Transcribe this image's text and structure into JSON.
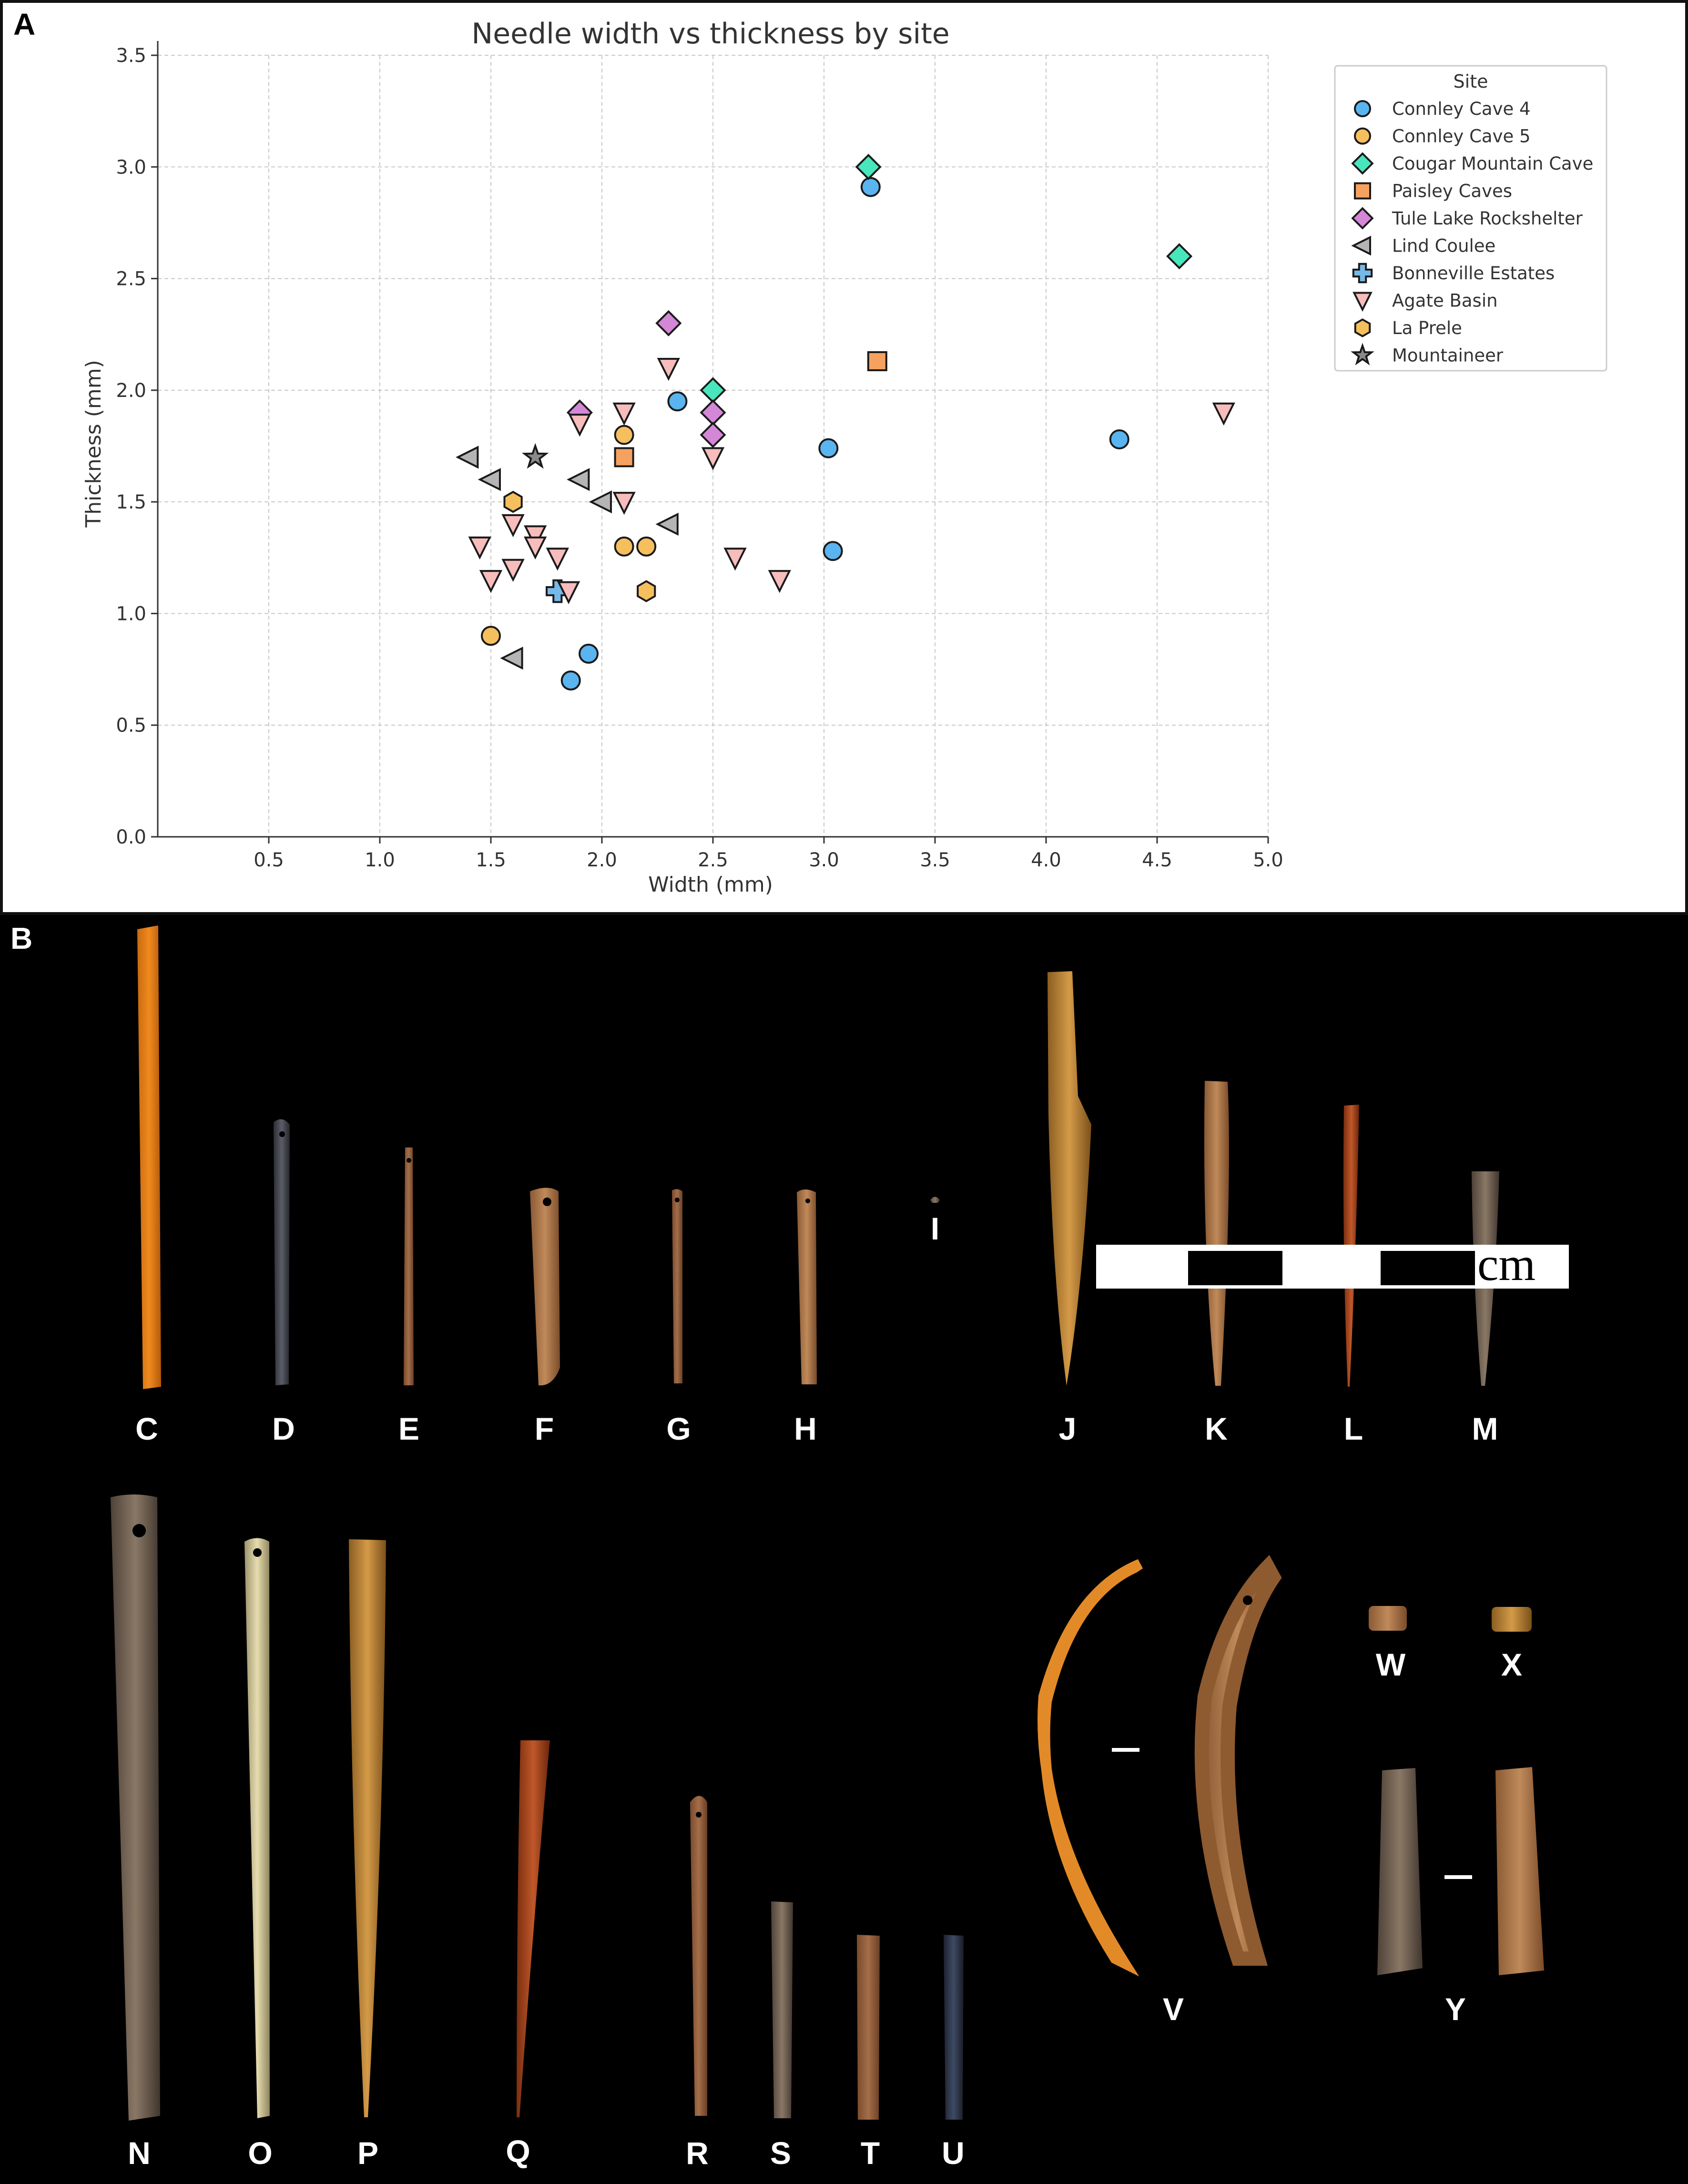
{
  "panels": {
    "a_letter": "A",
    "b_letter": "B"
  },
  "chart_data": {
    "type": "scatter",
    "title": "Needle width vs thickness by site",
    "xlabel": "Width (mm)",
    "ylabel": "Thickness (mm)",
    "xlim": [
      0,
      5.0
    ],
    "ylim": [
      0,
      3.5
    ],
    "x_ticks": [
      "0.5",
      "1.0",
      "1.5",
      "2.0",
      "2.5",
      "3.0",
      "3.5",
      "4.0",
      "4.5",
      "5.0"
    ],
    "y_ticks": [
      "0.0",
      "0.5",
      "1.0",
      "1.5",
      "2.0",
      "2.5",
      "3.0",
      "3.5"
    ],
    "grid": true,
    "legend_title": "Site",
    "legend_position": "upper-right",
    "series": [
      {
        "name": "Connley Cave 4",
        "marker": "circle",
        "color": "#5ab4f0",
        "points": [
          [
            1.86,
            0.7
          ],
          [
            1.94,
            0.82
          ],
          [
            2.34,
            1.95
          ],
          [
            3.02,
            1.74
          ],
          [
            3.04,
            1.28
          ],
          [
            3.21,
            2.91
          ],
          [
            4.33,
            1.78
          ]
        ]
      },
      {
        "name": "Connley Cave 5",
        "marker": "circle",
        "color": "#f6bf5e",
        "points": [
          [
            1.5,
            0.9
          ],
          [
            2.1,
            1.8
          ],
          [
            2.1,
            1.7
          ],
          [
            2.1,
            1.3
          ],
          [
            2.2,
            1.3
          ]
        ]
      },
      {
        "name": "Cougar Mountain Cave",
        "marker": "diamond",
        "color": "#48e6bc",
        "points": [
          [
            3.2,
            3.0
          ],
          [
            2.5,
            2.0
          ],
          [
            4.6,
            2.6
          ]
        ]
      },
      {
        "name": "Paisley Caves",
        "marker": "square",
        "color": "#f5a261",
        "points": [
          [
            3.24,
            2.13
          ],
          [
            2.1,
            1.7
          ]
        ]
      },
      {
        "name": "Tule Lake Rockshelter",
        "marker": "diamond",
        "color": "#d487d6",
        "points": [
          [
            1.9,
            1.9
          ],
          [
            2.3,
            2.3
          ],
          [
            2.5,
            1.9
          ],
          [
            2.5,
            1.8
          ]
        ]
      },
      {
        "name": "Lind Coulee",
        "marker": "triangle-left",
        "color": "#b5b5b5",
        "points": [
          [
            1.4,
            1.7
          ],
          [
            1.5,
            1.6
          ],
          [
            1.9,
            1.6
          ],
          [
            2.0,
            1.5
          ],
          [
            2.3,
            1.4
          ],
          [
            1.6,
            0.8
          ]
        ]
      },
      {
        "name": "Bonneville Estates",
        "marker": "plus",
        "color": "#76b9e9",
        "points": [
          [
            1.8,
            1.1
          ]
        ]
      },
      {
        "name": "Agate Basin",
        "marker": "triangle-down",
        "color": "#f7bcbc",
        "points": [
          [
            1.45,
            1.3
          ],
          [
            1.5,
            1.15
          ],
          [
            1.6,
            1.4
          ],
          [
            1.6,
            1.2
          ],
          [
            1.7,
            1.35
          ],
          [
            1.7,
            1.3
          ],
          [
            1.8,
            1.25
          ],
          [
            1.85,
            1.1
          ],
          [
            1.9,
            1.85
          ],
          [
            2.1,
            1.9
          ],
          [
            2.1,
            1.5
          ],
          [
            2.3,
            2.1
          ],
          [
            2.5,
            1.7
          ],
          [
            2.6,
            1.25
          ],
          [
            2.8,
            1.15
          ],
          [
            4.8,
            1.9
          ]
        ]
      },
      {
        "name": "La Prele",
        "marker": "hexagon",
        "color": "#f6bf5e",
        "points": [
          [
            1.6,
            1.5
          ],
          [
            2.2,
            1.1
          ]
        ]
      },
      {
        "name": "Mountaineer",
        "marker": "star",
        "color": "#8a8a8a",
        "points": [
          [
            1.7,
            1.7
          ]
        ]
      }
    ]
  },
  "specimens": [
    {
      "id": "C",
      "label": "C"
    },
    {
      "id": "D",
      "label": "D"
    },
    {
      "id": "E",
      "label": "E"
    },
    {
      "id": "F",
      "label": "F"
    },
    {
      "id": "G",
      "label": "G"
    },
    {
      "id": "H",
      "label": "H"
    },
    {
      "id": "I",
      "label": "I"
    },
    {
      "id": "J",
      "label": "J"
    },
    {
      "id": "K",
      "label": "K"
    },
    {
      "id": "L",
      "label": "L"
    },
    {
      "id": "M",
      "label": "M"
    },
    {
      "id": "N",
      "label": "N"
    },
    {
      "id": "O",
      "label": "O"
    },
    {
      "id": "P",
      "label": "P"
    },
    {
      "id": "Q",
      "label": "Q"
    },
    {
      "id": "R",
      "label": "R"
    },
    {
      "id": "S",
      "label": "S"
    },
    {
      "id": "T",
      "label": "T"
    },
    {
      "id": "U",
      "label": "U"
    },
    {
      "id": "V",
      "label": "V"
    },
    {
      "id": "W",
      "label": "W"
    },
    {
      "id": "X",
      "label": "X"
    },
    {
      "id": "Y",
      "label": "Y"
    }
  ],
  "scale_bar": {
    "unit": "cm"
  }
}
